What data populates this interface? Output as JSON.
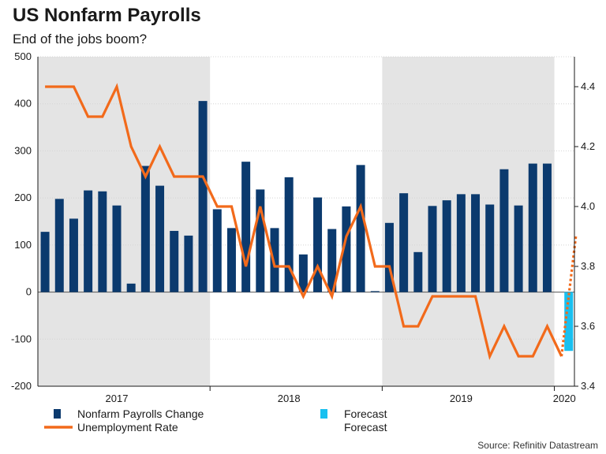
{
  "header": {
    "title": "US Nonfarm Payrolls",
    "subtitle": "End of the jobs boom?"
  },
  "source": "Source: Refinitiv Datastream",
  "colors": {
    "payrolls": "#0b3a6e",
    "payrolls_forecast": "#19c0f0",
    "unemployment": "#f26a1b",
    "shade": "#e4e4e4",
    "grid": "#d4d4d4",
    "axis": "#1a1a1a"
  },
  "chart_data": {
    "type": "bar+line",
    "title": "US Nonfarm Payrolls",
    "subtitle": "End of the jobs boom?",
    "left_axis": {
      "range": [
        -200,
        500
      ],
      "ticks": [
        -200,
        -100,
        0,
        100,
        200,
        300,
        400,
        500
      ]
    },
    "right_axis": {
      "range": [
        3.4,
        4.5
      ],
      "ticks": [
        3.4,
        3.6,
        3.8,
        4.0,
        4.2,
        4.4
      ]
    },
    "year_labels": [
      "2017",
      "2018",
      "2019",
      "2020"
    ],
    "shaded_years": [
      "2017",
      "2019"
    ],
    "x_range": [
      -0.5,
      36.9
    ],
    "year_boundaries": [
      11.5,
      23.5,
      35.5
    ],
    "year_label_positions": [
      5,
      17,
      29,
      36.2
    ],
    "payrolls": {
      "name": "Nonfarm Payrolls Change",
      "months": [
        0,
        1,
        2,
        3,
        4,
        5,
        6,
        7,
        8,
        9,
        10,
        11,
        12,
        13,
        14,
        15,
        16,
        17,
        18,
        19,
        20,
        21,
        22,
        23,
        24,
        25,
        26,
        27,
        28,
        29,
        30,
        31,
        32,
        33,
        34,
        35,
        36
      ],
      "values": [
        128,
        198,
        156,
        216,
        214,
        184,
        18,
        268,
        226,
        130,
        120,
        406,
        176,
        136,
        277,
        218,
        136,
        244,
        80,
        201,
        134,
        182,
        270,
        2,
        147,
        210,
        85,
        183,
        195,
        208,
        208,
        186,
        261,
        184,
        273,
        273,
        null
      ]
    },
    "payrolls_forecast": {
      "name": "Forecast",
      "months": [
        36.5
      ],
      "values": [
        -125
      ]
    },
    "unemployment": {
      "name": "Unemployment Rate",
      "x": [
        0,
        1,
        2,
        3,
        4,
        5,
        6,
        7,
        8,
        9,
        10,
        11,
        12,
        13,
        14,
        15,
        16,
        17,
        18,
        19,
        20,
        21,
        22,
        23,
        24,
        25,
        26,
        27,
        28,
        29,
        30,
        31,
        32,
        33,
        34,
        35,
        36
      ],
      "values": [
        4.4,
        4.4,
        4.4,
        4.3,
        4.3,
        4.4,
        4.2,
        4.1,
        4.2,
        4.1,
        4.1,
        4.1,
        4.0,
        4.0,
        3.8,
        4.0,
        3.8,
        3.8,
        3.7,
        3.8,
        3.7,
        3.9,
        4.0,
        3.8,
        3.8,
        3.6,
        3.6,
        3.7,
        3.7,
        3.7,
        3.7,
        3.5,
        3.6,
        3.5,
        3.5,
        3.6,
        3.5
      ]
    },
    "unemployment_forecast": {
      "name": "Forecast",
      "x": [
        36,
        37
      ],
      "values": [
        3.5,
        3.9
      ]
    },
    "legend": [
      {
        "label": "Nonfarm Payrolls Change",
        "kind": "bar",
        "series": "payrolls"
      },
      {
        "label": "Forecast",
        "kind": "bar",
        "series": "payrolls_forecast"
      },
      {
        "label": "Unemployment Rate",
        "kind": "line",
        "series": "unemployment"
      },
      {
        "label": "Forecast",
        "kind": "dotted",
        "series": "unemployment_forecast"
      }
    ]
  }
}
